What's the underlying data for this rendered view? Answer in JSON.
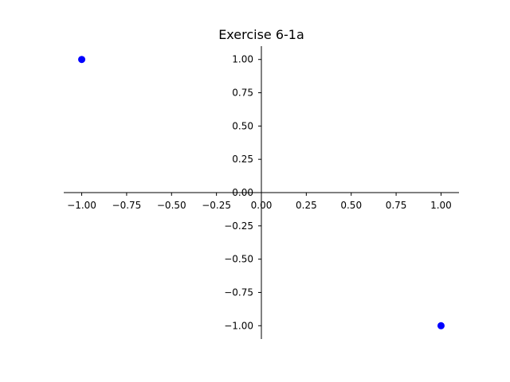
{
  "chart_data": {
    "type": "scatter",
    "title": "Exercise 6-1a",
    "xlabel": "",
    "ylabel": "",
    "xlim": [
      -1.1,
      1.1
    ],
    "ylim": [
      -1.1,
      1.1
    ],
    "xticks": [
      -1.0,
      -0.75,
      -0.5,
      -0.25,
      0.0,
      0.25,
      0.5,
      0.75,
      1.0
    ],
    "yticks": [
      -1.0,
      -0.75,
      -0.5,
      -0.25,
      0.0,
      0.25,
      0.5,
      0.75,
      1.0
    ],
    "x_tick_labels": [
      "−1.00",
      "−0.75",
      "−0.50",
      "−0.25",
      "0.00",
      "0.25",
      "0.50",
      "0.75",
      "1.00"
    ],
    "y_tick_labels": [
      "−1.00",
      "−0.75",
      "−0.50",
      "−0.25",
      "0.00",
      "0.25",
      "0.50",
      "0.75",
      "1.00"
    ],
    "grid": false,
    "spines": "centered at origin",
    "points": [
      {
        "x": -1.0,
        "y": 1.0
      },
      {
        "x": 1.0,
        "y": -1.0
      }
    ],
    "marker_color": "#0000ff"
  }
}
